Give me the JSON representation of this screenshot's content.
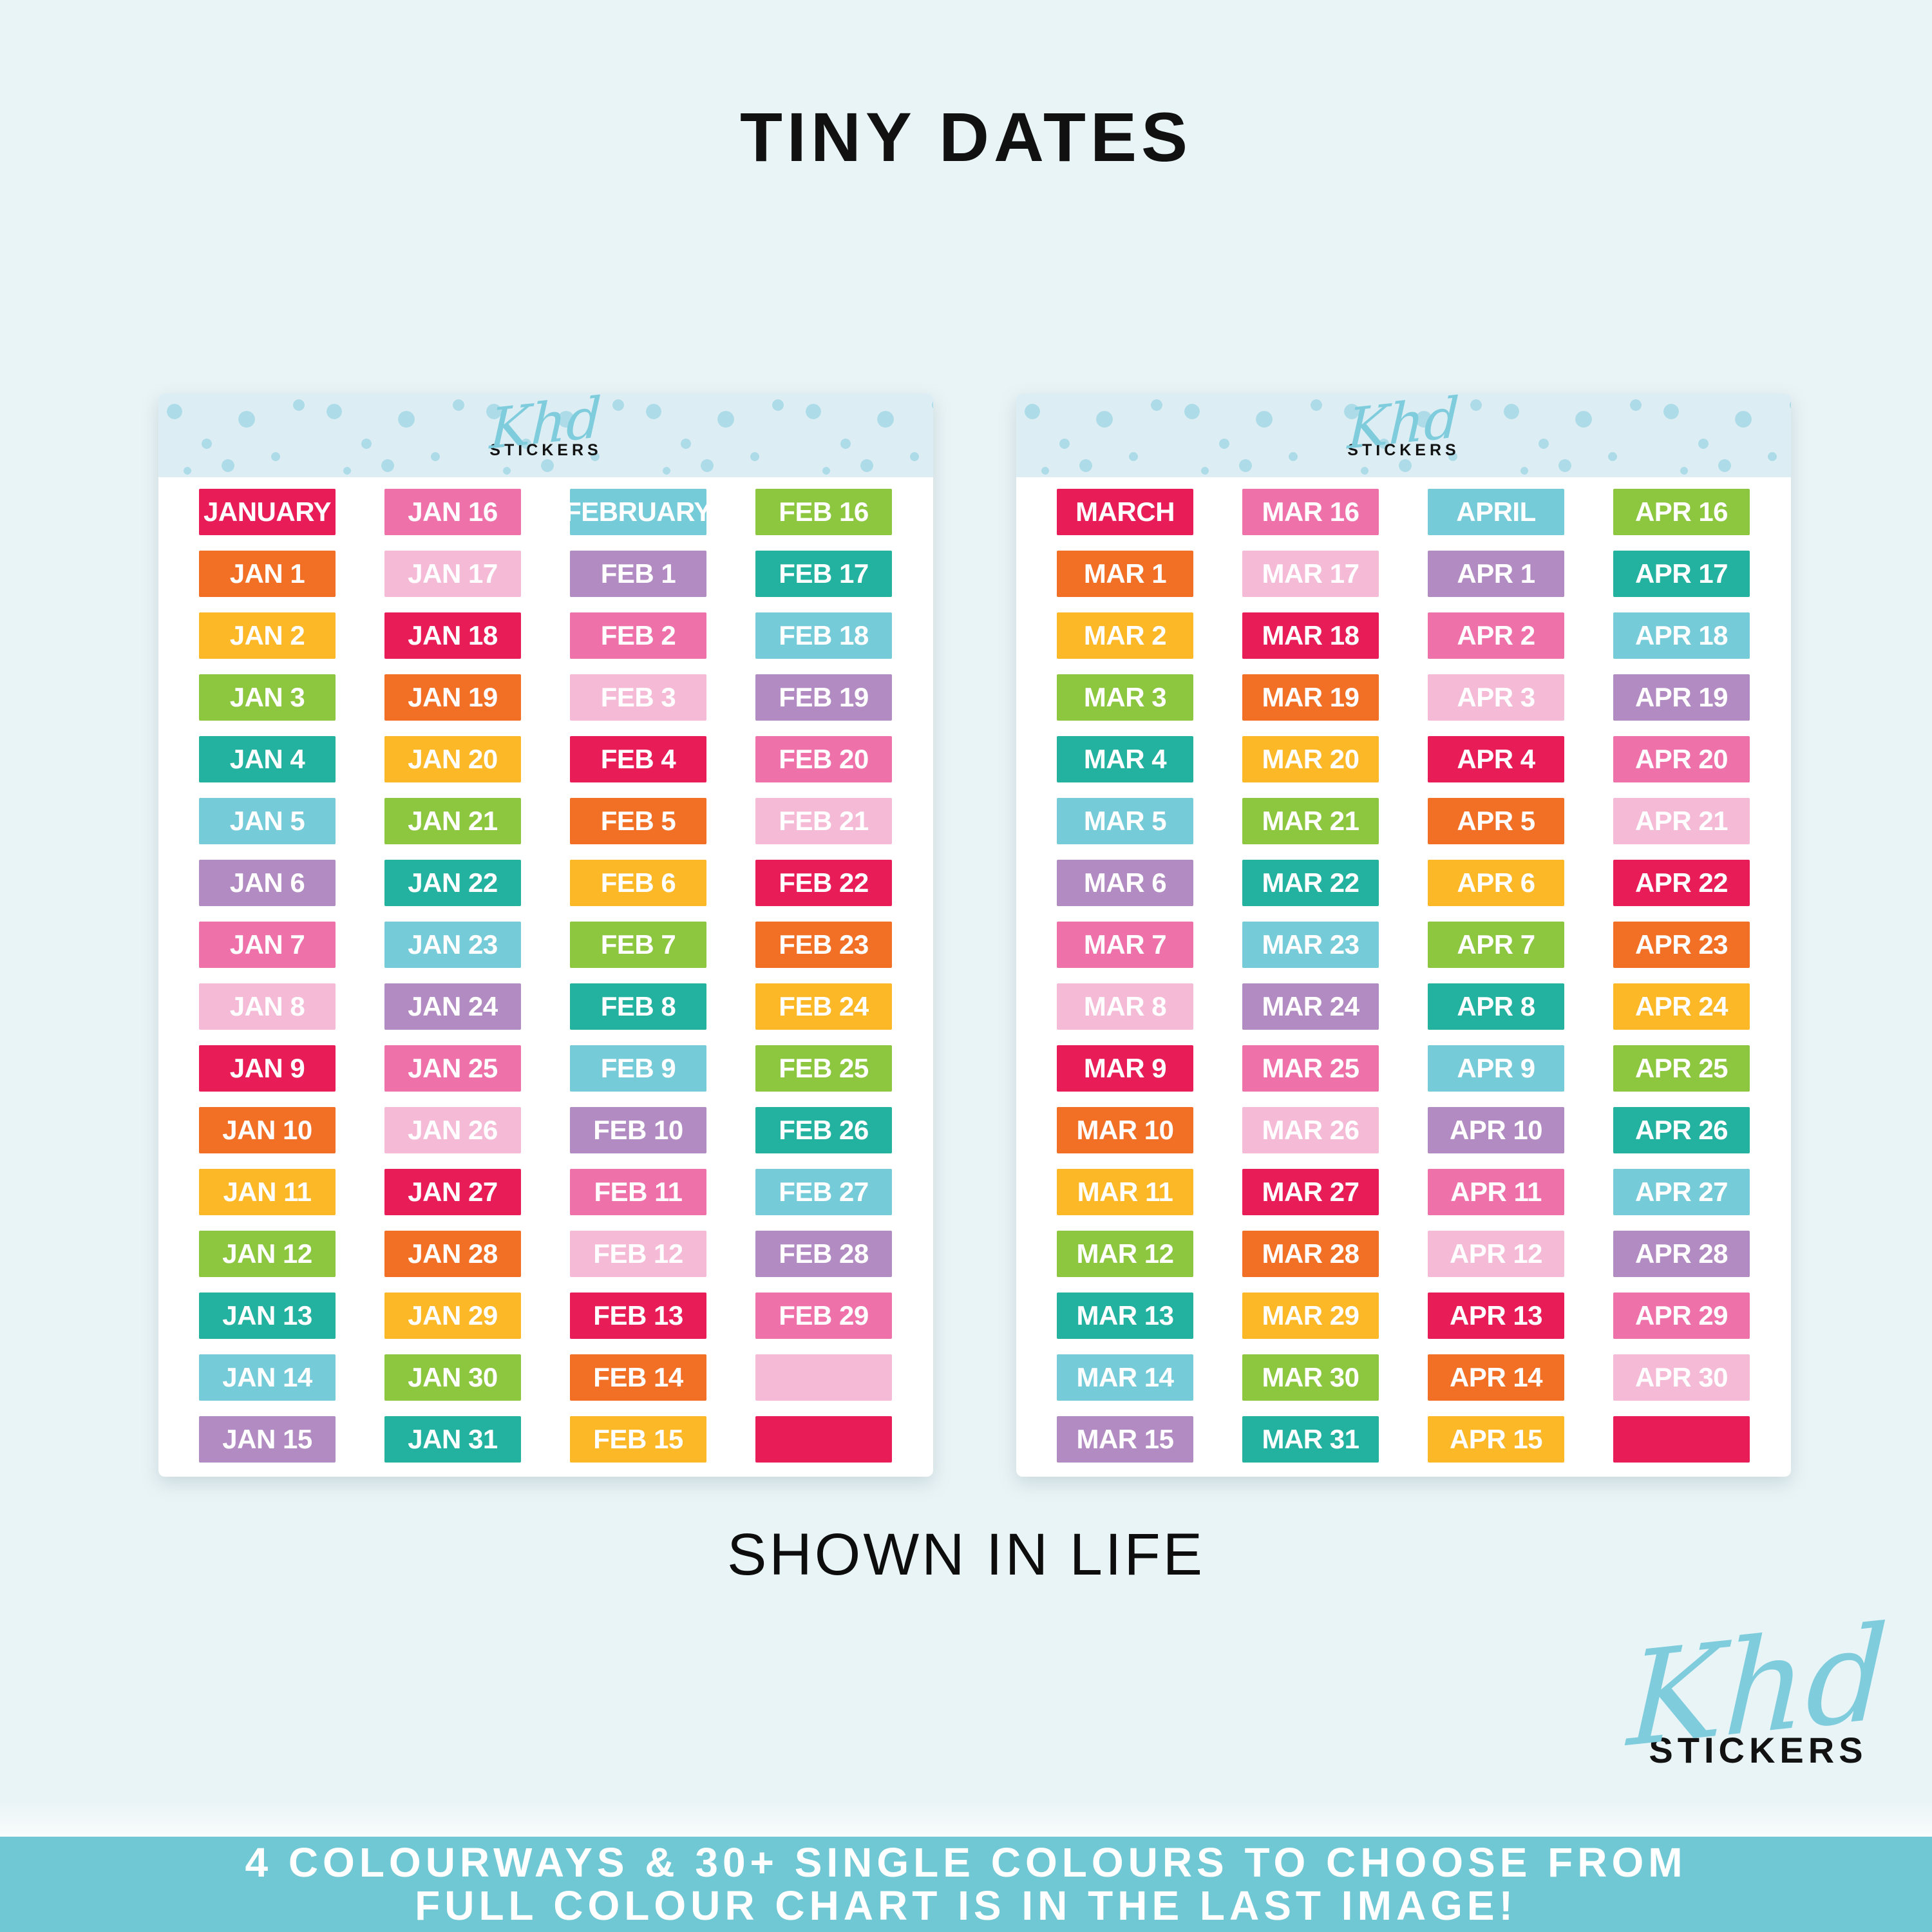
{
  "title": "TINY DATES",
  "caption": "SHOWN IN LIFE",
  "brand": {
    "script": "Khd",
    "word": "STICKERS"
  },
  "footer": {
    "line1": "4 COLOURWAYS & 30+ SINGLE COLOURS TO CHOOSE FROM",
    "line2": "FULL COLOUR CHART IS IN THE LAST IMAGE!"
  },
  "colors": {
    "page_bg": "#e9f4f6",
    "sheet_bg": "#ffffff",
    "header_band_bg": "#dceef3",
    "header_dots": "#addce8",
    "brand_script_blue": "#7fccdd",
    "footer_bg": "#6fc8d3",
    "sticker_text": "#ffffff",
    "title_text": "#111111"
  },
  "palette": [
    "#e81c56",
    "#f26f26",
    "#fcb826",
    "#8dc63f",
    "#23b2a0",
    "#76cbd9",
    "#b18bc1",
    "#ee71aa",
    "#f5bad6"
  ],
  "sheets": [
    {
      "columns": [
        [
          "JANUARY",
          "JAN 1",
          "JAN 2",
          "JAN 3",
          "JAN 4",
          "JAN 5",
          "JAN 6",
          "JAN 7",
          "JAN 8",
          "JAN 9",
          "JAN 10",
          "JAN 11",
          "JAN 12",
          "JAN 13",
          "JAN 14",
          "JAN 15"
        ],
        [
          "JAN 16",
          "JAN 17",
          "JAN 18",
          "JAN 19",
          "JAN 20",
          "JAN 21",
          "JAN 22",
          "JAN 23",
          "JAN 24",
          "JAN 25",
          "JAN 26",
          "JAN 27",
          "JAN 28",
          "JAN 29",
          "JAN 30",
          "JAN 31"
        ],
        [
          "FEBRUARY",
          "FEB 1",
          "FEB 2",
          "FEB 3",
          "FEB 4",
          "FEB 5",
          "FEB 6",
          "FEB 7",
          "FEB 8",
          "FEB 9",
          "FEB 10",
          "FEB 11",
          "FEB 12",
          "FEB 13",
          "FEB 14",
          "FEB 15"
        ],
        [
          "FEB 16",
          "FEB 17",
          "FEB 18",
          "FEB 19",
          "FEB 20",
          "FEB 21",
          "FEB 22",
          "FEB 23",
          "FEB 24",
          "FEB 25",
          "FEB 26",
          "FEB 27",
          "FEB 28",
          "FEB 29",
          "",
          ""
        ]
      ]
    },
    {
      "columns": [
        [
          "MARCH",
          "MAR 1",
          "MAR 2",
          "MAR 3",
          "MAR 4",
          "MAR 5",
          "MAR 6",
          "MAR 7",
          "MAR 8",
          "MAR 9",
          "MAR 10",
          "MAR 11",
          "MAR 12",
          "MAR 13",
          "MAR 14",
          "MAR 15"
        ],
        [
          "MAR 16",
          "MAR 17",
          "MAR 18",
          "MAR 19",
          "MAR 20",
          "MAR 21",
          "MAR 22",
          "MAR 23",
          "MAR 24",
          "MAR 25",
          "MAR 26",
          "MAR 27",
          "MAR 28",
          "MAR 29",
          "MAR 30",
          "MAR 31"
        ],
        [
          "APRIL",
          "APR 1",
          "APR 2",
          "APR 3",
          "APR 4",
          "APR 5",
          "APR 6",
          "APR 7",
          "APR 8",
          "APR 9",
          "APR 10",
          "APR 11",
          "APR 12",
          "APR 13",
          "APR 14",
          "APR 15"
        ],
        [
          "APR 16",
          "APR 17",
          "APR 18",
          "APR 19",
          "APR 20",
          "APR 21",
          "APR 22",
          "APR 23",
          "APR 24",
          "APR 25",
          "APR 26",
          "APR 27",
          "APR 28",
          "APR 29",
          "APR 30",
          ""
        ]
      ]
    }
  ]
}
